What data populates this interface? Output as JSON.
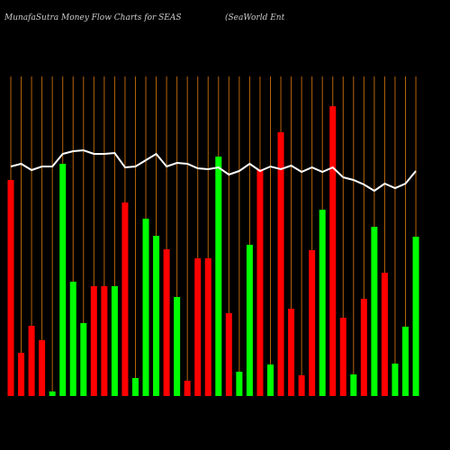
{
  "chart_data": {
    "type": "bar",
    "title": "MunafaSutra  Money Flow  Charts for SEAS",
    "subtitle": "(SeaWorld Ent",
    "categories": [
      null,
      null,
      null,
      null,
      null,
      null,
      null,
      null,
      null,
      null,
      null,
      null,
      null,
      null,
      null,
      null,
      null,
      null,
      null,
      null,
      null,
      null,
      null,
      null,
      null,
      null,
      null,
      null,
      null,
      null,
      null,
      null,
      null,
      null,
      null,
      null,
      null,
      null,
      null,
      null
    ],
    "values": [
      240,
      48,
      78,
      62,
      5,
      258,
      127,
      81,
      122,
      122,
      122,
      215,
      20,
      197,
      178,
      163,
      110,
      17,
      153,
      153,
      266,
      92,
      27,
      168,
      252,
      35,
      293,
      97,
      23,
      162,
      207,
      322,
      87,
      24,
      108,
      188,
      137,
      36,
      77,
      177
    ],
    "colors": [
      "#ff0000",
      "#ff0000",
      "#ff0000",
      "#ff0000",
      "#00ff00",
      "#00ff00",
      "#00ff00",
      "#00ff00",
      "#ff0000",
      "#ff0000",
      "#00ff00",
      "#ff0000",
      "#00ff00",
      "#00ff00",
      "#00ff00",
      "#ff0000",
      "#00ff00",
      "#ff0000",
      "#ff0000",
      "#ff0000",
      "#00ff00",
      "#ff0000",
      "#00ff00",
      "#00ff00",
      "#ff0000",
      "#00ff00",
      "#ff0000",
      "#ff0000",
      "#ff0000",
      "#ff0000",
      "#00ff00",
      "#ff0000",
      "#ff0000",
      "#00ff00",
      "#ff0000",
      "#00ff00",
      "#ff0000",
      "#00ff00",
      "#00ff00",
      "#00ff00"
    ],
    "line": {
      "color": "#ffffff",
      "values": [
        255,
        258,
        251,
        255,
        255,
        269,
        272,
        273,
        269,
        269,
        270,
        254,
        255,
        262,
        269,
        255,
        259,
        258,
        253,
        252,
        254,
        246,
        250,
        258,
        250,
        255,
        252,
        256,
        249,
        254,
        249,
        254,
        243,
        240,
        235,
        228,
        236,
        231,
        236,
        250
      ]
    },
    "grid_color": "#b8650b",
    "ylim": [
      0,
      440
    ]
  }
}
